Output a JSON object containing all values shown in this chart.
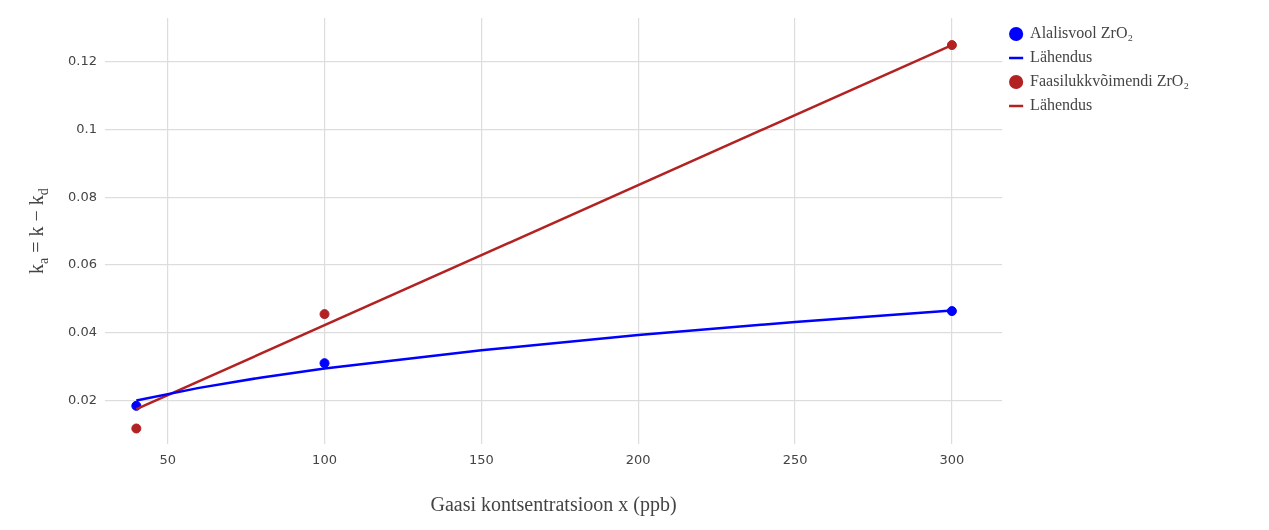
{
  "chart_data": {
    "type": "scatter",
    "xlabel": "Gaasi kontsentratsioon x (ppb)",
    "ylabel": "k$_{a}$ = k − k$_{d}$",
    "xlim": [
      30,
      316
    ],
    "xticks": [
      50,
      100,
      150,
      200,
      250,
      300
    ],
    "ylim": [
      0.007,
      0.133
    ],
    "yticks": [
      0.02,
      0.04,
      0.06,
      0.08,
      0.1,
      0.12
    ],
    "grid": true,
    "legend": "top right",
    "series": [
      {
        "type": "scatter",
        "name": "Alalisvool ZrO₂",
        "color": "#0000ff",
        "marker": "circle",
        "x": [
          40,
          100,
          300
        ],
        "values": [
          0.0184,
          0.031,
          0.0464
        ]
      },
      {
        "type": "line",
        "name": "Lähendus",
        "color": "#0000ff",
        "marker": "none",
        "x": [
          40,
          60,
          80,
          100,
          150,
          200,
          250,
          300
        ],
        "values": [
          0.02,
          0.0237,
          0.0268,
          0.0294,
          0.0348,
          0.0393,
          0.0432,
          0.0466
        ]
      },
      {
        "type": "scatter",
        "name": "Faasilukkvõimendi ZrO₂",
        "color": "#b22222",
        "marker": "circle",
        "x": [
          40,
          100,
          300
        ],
        "values": [
          0.0117,
          0.0455,
          0.125
        ]
      },
      {
        "type": "line",
        "name": "Lähendus",
        "color": "#b22222",
        "marker": "none",
        "x": [
          40,
          300
        ],
        "values": [
          0.0174,
          0.125
        ]
      }
    ]
  }
}
